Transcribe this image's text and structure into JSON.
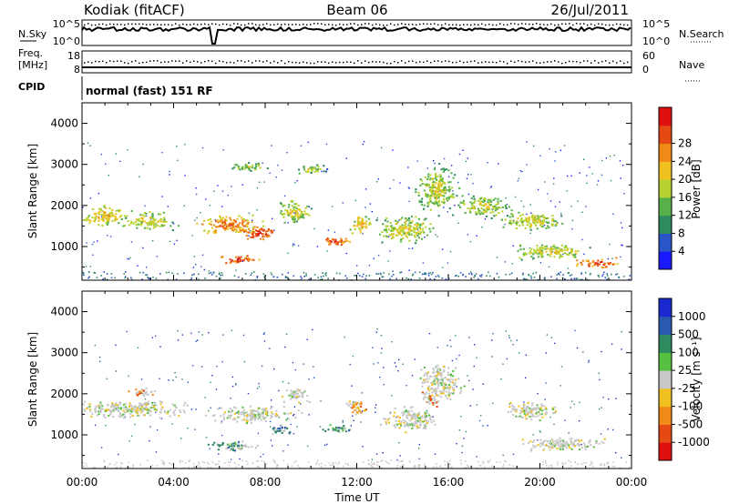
{
  "header": {
    "station": "Kodiak (fitACF)",
    "beam": "Beam 06",
    "date": "26/Jul/2011"
  },
  "strips": {
    "nsky_label": "N.Sky",
    "nsky_ticks": [
      "10^5",
      "10^0"
    ],
    "nsearch_label": "N.Search",
    "nsearch_ticks": [
      "10^5",
      "10^0"
    ],
    "freq_label_1": "Freq.",
    "freq_label_2": "[MHz]",
    "freq_ticks": [
      "18",
      "8"
    ],
    "nave_label": "Nave",
    "nave_ticks": [
      "60",
      "0"
    ],
    "cpid_label": "CPID",
    "cpid_value": "normal (fast) 151 RF"
  },
  "chart_data": [
    {
      "type": "heatmap",
      "name": "power-panel",
      "ylabel": "Slant Range [km]",
      "xlabel": "Time UT",
      "ylim": [
        180,
        4500
      ],
      "xlim": [
        0,
        24
      ],
      "yticks": [
        1000,
        2000,
        3000,
        4000
      ],
      "colorbar": {
        "label": "Power [dB]",
        "ticks": [
          "4",
          "8",
          "12",
          "16",
          "20",
          "24",
          "28"
        ],
        "colors": [
          "#1a1aff",
          "#2a55c8",
          "#2f8a60",
          "#57b04a",
          "#b6d22e",
          "#f0c020",
          "#f08a16",
          "#e64a14",
          "#e01010"
        ]
      },
      "blobs": [
        {
          "t": 0.9,
          "r": 1750,
          "dt": 1.3,
          "dr": 320,
          "v": 0.55
        },
        {
          "t": 2.9,
          "r": 1650,
          "dt": 1.4,
          "dr": 280,
          "v": 0.45
        },
        {
          "t": 6.4,
          "r": 1550,
          "dt": 1.8,
          "dr": 300,
          "v": 0.75
        },
        {
          "t": 7.7,
          "r": 1350,
          "dt": 1.1,
          "dr": 200,
          "v": 0.95
        },
        {
          "t": 6.8,
          "r": 700,
          "dt": 1.0,
          "dr": 150,
          "v": 0.95
        },
        {
          "t": 9.2,
          "r": 1850,
          "dt": 1.0,
          "dr": 350,
          "v": 0.45
        },
        {
          "t": 11.0,
          "r": 1150,
          "dt": 0.8,
          "dr": 160,
          "v": 0.9
        },
        {
          "t": 12.2,
          "r": 1550,
          "dt": 0.6,
          "dr": 300,
          "v": 0.6
        },
        {
          "t": 14.1,
          "r": 1450,
          "dt": 1.6,
          "dr": 420,
          "v": 0.45
        },
        {
          "t": 15.5,
          "r": 2400,
          "dt": 1.2,
          "dr": 700,
          "v": 0.4
        },
        {
          "t": 17.5,
          "r": 2000,
          "dt": 1.4,
          "dr": 350,
          "v": 0.4
        },
        {
          "t": 19.6,
          "r": 1650,
          "dt": 1.6,
          "dr": 300,
          "v": 0.45
        },
        {
          "t": 20.5,
          "r": 900,
          "dt": 2.0,
          "dr": 250,
          "v": 0.45
        },
        {
          "t": 22.6,
          "r": 620,
          "dt": 1.2,
          "dr": 160,
          "v": 0.9
        },
        {
          "t": 10.0,
          "r": 2900,
          "dt": 0.8,
          "dr": 160,
          "v": 0.3
        },
        {
          "t": 7.2,
          "r": 2950,
          "dt": 1.0,
          "dr": 150,
          "v": 0.3
        }
      ]
    },
    {
      "type": "heatmap",
      "name": "velocity-panel",
      "ylabel": "Slant Range [km]",
      "xlabel": "Time UT",
      "ylim": [
        180,
        4500
      ],
      "xlim": [
        0,
        24
      ],
      "yticks": [
        1000,
        2000,
        3000,
        4000
      ],
      "xticks": [
        "00:00",
        "04:00",
        "08:00",
        "12:00",
        "16:00",
        "20:00",
        "00:00"
      ],
      "colorbar": {
        "label": "Velocity [m s⁻¹]",
        "ticks": [
          "1000",
          "500",
          "100",
          "25",
          "-25",
          "-100",
          "-500",
          "-1000"
        ],
        "colors": [
          "#1a2ad0",
          "#2a5ab0",
          "#2f8a60",
          "#57c040",
          "#c8c8c8",
          "#f0c020",
          "#f08a16",
          "#e64a14",
          "#e01010"
        ]
      },
      "blobs": [
        {
          "t": 2.0,
          "r": 1650,
          "dt": 3.5,
          "dr": 260,
          "v": 0.5
        },
        {
          "t": 7.4,
          "r": 1500,
          "dt": 2.4,
          "dr": 260,
          "v": 0.5
        },
        {
          "t": 6.7,
          "r": 750,
          "dt": 1.4,
          "dr": 160,
          "v": 0.25
        },
        {
          "t": 8.6,
          "r": 1150,
          "dt": 0.7,
          "dr": 180,
          "v": 0.15
        },
        {
          "t": 11.2,
          "r": 1150,
          "dt": 0.8,
          "dr": 150,
          "v": 0.25
        },
        {
          "t": 12.0,
          "r": 1700,
          "dt": 0.6,
          "dr": 280,
          "v": 0.75
        },
        {
          "t": 14.3,
          "r": 1400,
          "dt": 1.6,
          "dr": 360,
          "v": 0.5
        },
        {
          "t": 15.6,
          "r": 2300,
          "dt": 1.2,
          "dr": 600,
          "v": 0.5
        },
        {
          "t": 15.2,
          "r": 1900,
          "dt": 0.5,
          "dr": 220,
          "v": 0.8
        },
        {
          "t": 19.6,
          "r": 1600,
          "dt": 1.6,
          "dr": 280,
          "v": 0.5
        },
        {
          "t": 21.0,
          "r": 800,
          "dt": 2.4,
          "dr": 220,
          "v": 0.5
        },
        {
          "t": 2.6,
          "r": 2050,
          "dt": 0.8,
          "dr": 150,
          "v": 0.8
        },
        {
          "t": 9.3,
          "r": 2000,
          "dt": 0.8,
          "dr": 250,
          "v": 0.5
        }
      ]
    }
  ]
}
